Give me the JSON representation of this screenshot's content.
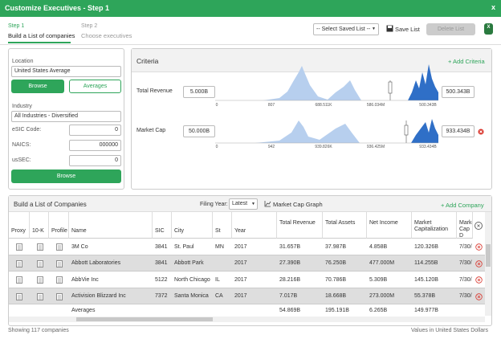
{
  "header": {
    "title": "Customize Executives - Step 1",
    "close": "x"
  },
  "steps": [
    {
      "label": "Step 1",
      "description": "Build a List of companies"
    },
    {
      "label": "Step 2",
      "description": "Choose executives"
    }
  ],
  "toolbar": {
    "saved_list": "-- Select Saved List --",
    "save": "Save List",
    "delete": "Delete List",
    "excel": "X"
  },
  "location": {
    "label": "Location",
    "value": "United States Average",
    "browse": "Browse",
    "averages": "Averages"
  },
  "industry": {
    "label": "Industry",
    "value": "All Industries - Diversified",
    "fields": [
      {
        "label": "eSIC Code:",
        "value": "0"
      },
      {
        "label": "NAICS:",
        "value": "000000"
      },
      {
        "label": "usSEC:",
        "value": "0"
      }
    ],
    "browse": "Browse"
  },
  "criteria": {
    "title": "Criteria",
    "add": "+ Add Criteria",
    "rows": [
      {
        "label": "Total Revenue",
        "min": "5.000B",
        "max": "500.343B",
        "axis": [
          "0",
          "807",
          "688.511K",
          "586.034M",
          "500.343B"
        ]
      },
      {
        "label": "Market Cap",
        "min": "50.000B",
        "max": "933.434B",
        "axis": [
          "0",
          "942",
          "939.826K",
          "936.425M",
          "933.434B"
        ]
      }
    ]
  },
  "companies": {
    "title": "Build a List of Companies",
    "filing_year_label": "Filing Year:",
    "filing_year": "Latest",
    "graph": "Market Cap Graph",
    "add": "+ Add Company",
    "columns": [
      "Proxy",
      "10-K",
      "Profile",
      "Name",
      "SIC",
      "City",
      "St",
      "Year",
      "Total Revenue",
      "Total Assets",
      "Net Income",
      "Market Capitalization",
      "Market Cap D"
    ],
    "rows": [
      [
        "3M Co",
        "3841",
        "St. Paul",
        "MN",
        "2017",
        "31.657B",
        "37.987B",
        "4.858B",
        "120.326B",
        "7/30/"
      ],
      [
        "Abbott Laboratories",
        "3841",
        "Abbott Park",
        null,
        "2017",
        "27.390B",
        "76.250B",
        "477.000M",
        "114.255B",
        "7/30/"
      ],
      [
        "AbbVie Inc",
        "5122",
        "North Chicago",
        "IL",
        "2017",
        "28.216B",
        "70.786B",
        "5.309B",
        "145.120B",
        "7/30/"
      ],
      [
        "Activision Blizzard Inc",
        "7372",
        "Santa Monica",
        "CA",
        "2017",
        "7.017B",
        "18.668B",
        "273.000M",
        "55.378B",
        "7/30/"
      ]
    ],
    "averages": {
      "label": "Averages",
      "values": [
        "54.869B",
        "195.191B",
        "6.265B",
        "149.977B"
      ]
    }
  },
  "footer": {
    "count": "Showing 117 companies",
    "units": "Values in United States Dollars"
  }
}
